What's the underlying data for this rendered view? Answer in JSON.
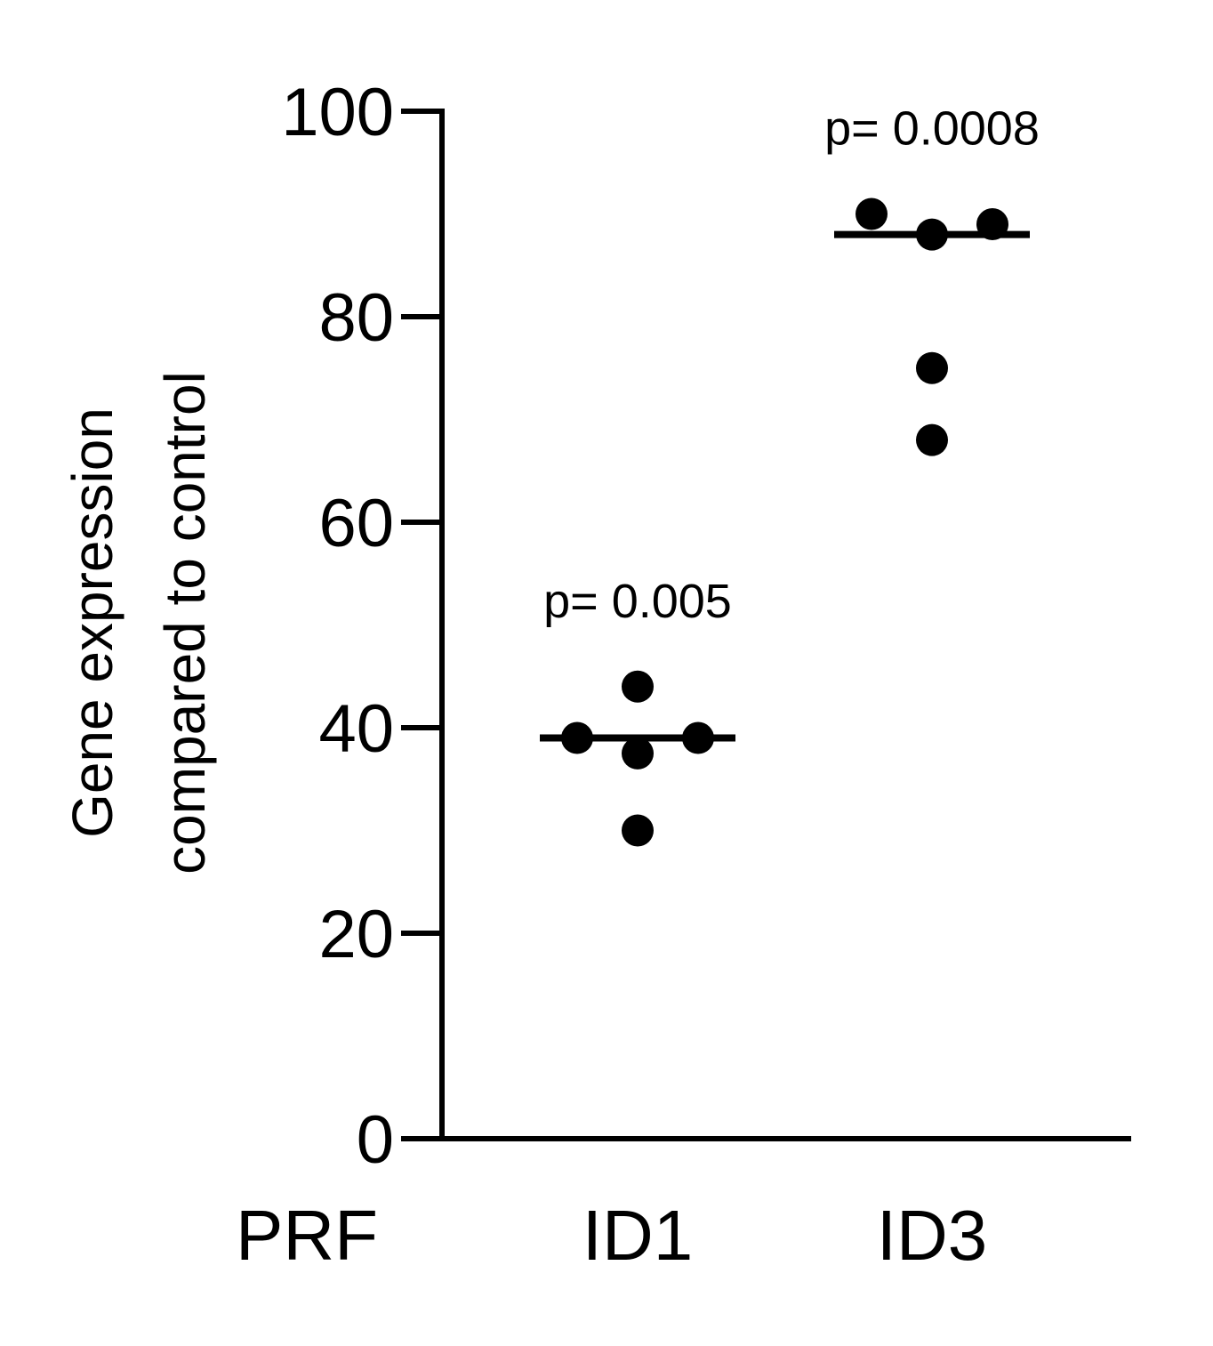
{
  "chart_data": {
    "type": "scatter",
    "title": "",
    "ylabel_lines": [
      "Gene expression",
      "compared to control"
    ],
    "xlabel": "",
    "row_label": "PRF",
    "categories": [
      "ID1",
      "ID3"
    ],
    "ylim": [
      0,
      100
    ],
    "yticks": [
      0,
      20,
      40,
      60,
      80,
      100
    ],
    "grid": false,
    "series": [
      {
        "category": "ID1",
        "points": [
          {
            "offset": 0,
            "value": 44
          },
          {
            "offset": -1,
            "value": 39
          },
          {
            "offset": 0,
            "value": 37.5
          },
          {
            "offset": 1,
            "value": 39
          },
          {
            "offset": 0,
            "value": 30
          }
        ],
        "median": 39,
        "annotation": "p= 0.005"
      },
      {
        "category": "ID3",
        "points": [
          {
            "offset": -1,
            "value": 90
          },
          {
            "offset": 0,
            "value": 88
          },
          {
            "offset": 1,
            "value": 89
          },
          {
            "offset": 0,
            "value": 75
          },
          {
            "offset": 0,
            "value": 68
          }
        ],
        "median": 88,
        "annotation": "p= 0.0008"
      }
    ]
  }
}
